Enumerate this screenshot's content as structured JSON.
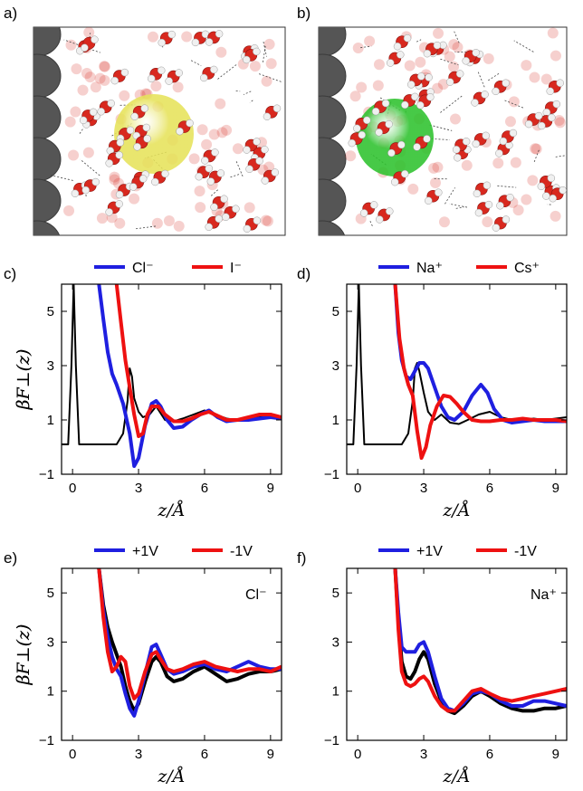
{
  "panels": {
    "a": {
      "label": "a)"
    },
    "b": {
      "label": "b)"
    }
  },
  "colors": {
    "blue": "#1f1fe0",
    "red": "#ee1111",
    "black": "#000000",
    "ion_a": "#e6e25a",
    "ion_b": "#2ec22e",
    "water_o": "#d8281e",
    "water_h": "#f0f0f0",
    "wall": "#555555"
  },
  "chart_data": [
    {
      "panel": "c)",
      "type": "line",
      "xlabel": "z/Å",
      "ylabel": "βF⊥(z)",
      "xlim": [
        -0.5,
        9.5
      ],
      "ylim": [
        -1,
        6
      ],
      "xticks": [
        0,
        3,
        6,
        9
      ],
      "yticks": [
        -1,
        1,
        3,
        5
      ],
      "legend": [
        {
          "name": "Cl⁻",
          "color": "#1f1fe0"
        },
        {
          "name": "I⁻",
          "color": "#ee1111"
        }
      ],
      "series": [
        {
          "color": "#000000",
          "width": 2,
          "x": [
            -0.5,
            -0.2,
            -0.05,
            0.05,
            0.15,
            0.3,
            0.5,
            1,
            1.5,
            2,
            2.3,
            2.5,
            2.6,
            2.7,
            2.8,
            3,
            3.2,
            3.5,
            3.8,
            4.2,
            4.6,
            5,
            5.5,
            6,
            6.5,
            7,
            7.5,
            8,
            8.5,
            9,
            9.5
          ],
          "y": [
            0.1,
            0.1,
            3,
            6,
            3,
            0.1,
            0.1,
            0.1,
            0.1,
            0.1,
            0.5,
            1.7,
            2.9,
            2.6,
            1.8,
            1.3,
            1.1,
            1.2,
            1.5,
            1.0,
            0.95,
            1.05,
            1.2,
            1.35,
            1.2,
            1.05,
            1.0,
            1.05,
            1.1,
            1.1,
            1.1
          ]
        },
        {
          "name": "Cl⁻",
          "color": "#1f1fe0",
          "width": 4,
          "x": [
            1.2,
            1.4,
            1.6,
            1.8,
            2.0,
            2.3,
            2.6,
            2.8,
            3.0,
            3.3,
            3.6,
            3.8,
            4.0,
            4.3,
            4.6,
            5.0,
            5.4,
            5.8,
            6.2,
            6.6,
            7.0,
            7.5,
            8,
            8.5,
            9,
            9.5
          ],
          "y": [
            6,
            4.7,
            3.5,
            2.7,
            2.3,
            1.6,
            0.5,
            -0.7,
            -0.4,
            0.8,
            1.6,
            1.7,
            1.5,
            1.0,
            0.7,
            0.75,
            1.0,
            1.2,
            1.35,
            1.1,
            0.95,
            1.0,
            1.0,
            1.05,
            1.1,
            1.05
          ]
        },
        {
          "name": "I⁻",
          "color": "#ee1111",
          "width": 4,
          "x": [
            2.0,
            2.2,
            2.4,
            2.6,
            2.8,
            3.0,
            3.2,
            3.4,
            3.6,
            3.9,
            4.2,
            4.6,
            5.0,
            5.4,
            5.8,
            6.2,
            6.6,
            7.0,
            7.5,
            8,
            8.5,
            9,
            9.5
          ],
          "y": [
            6,
            4.6,
            3.2,
            2.2,
            1.2,
            0.4,
            0.5,
            1.2,
            1.5,
            1.5,
            1.2,
            0.95,
            0.95,
            1.05,
            1.2,
            1.3,
            1.15,
            1.0,
            1.0,
            1.1,
            1.2,
            1.2,
            1.1
          ]
        }
      ]
    },
    {
      "panel": "d)",
      "type": "line",
      "xlabel": "z/Å",
      "ylabel": "βF⊥(z)",
      "xlim": [
        -0.5,
        9.5
      ],
      "ylim": [
        -1,
        6
      ],
      "xticks": [
        0,
        3,
        6,
        9
      ],
      "yticks": [
        -1,
        1,
        3,
        5
      ],
      "legend": [
        {
          "name": "Na⁺",
          "color": "#1f1fe0"
        },
        {
          "name": "Cs⁺",
          "color": "#ee1111"
        }
      ],
      "series": [
        {
          "color": "#000000",
          "width": 2,
          "x": [
            -0.5,
            -0.2,
            -0.05,
            0.05,
            0.15,
            0.3,
            0.5,
            1,
            1.5,
            2,
            2.3,
            2.5,
            2.6,
            2.7,
            2.8,
            3,
            3.2,
            3.5,
            3.8,
            4.2,
            4.6,
            5,
            5.5,
            6,
            6.5,
            7,
            7.5,
            8,
            8.5,
            9,
            9.5
          ],
          "y": [
            0.1,
            0.1,
            3,
            6,
            3,
            0.1,
            0.1,
            0.1,
            0.1,
            0.1,
            0.5,
            1.7,
            2.9,
            3.1,
            2.8,
            2.0,
            1.3,
            1.0,
            1.2,
            0.9,
            0.85,
            1.0,
            1.2,
            1.3,
            1.1,
            1.0,
            1.0,
            1.05,
            1.0,
            1.05,
            1.1
          ]
        },
        {
          "name": "Na⁺",
          "color": "#1f1fe0",
          "width": 4,
          "x": [
            1.7,
            1.85,
            2.0,
            2.2,
            2.4,
            2.6,
            2.8,
            3.0,
            3.2,
            3.5,
            3.8,
            4.1,
            4.4,
            4.8,
            5.2,
            5.6,
            5.9,
            6.2,
            6.6,
            7.0,
            7.5,
            8,
            8.5,
            9,
            9.5
          ],
          "y": [
            6,
            4.2,
            3.2,
            2.6,
            2.5,
            2.8,
            3.1,
            3.1,
            2.9,
            2.2,
            1.5,
            1.1,
            1.0,
            1.3,
            1.9,
            2.3,
            2.0,
            1.4,
            1.0,
            0.9,
            0.95,
            1.0,
            0.95,
            0.95,
            0.95
          ]
        },
        {
          "name": "Cs⁺",
          "color": "#ee1111",
          "width": 4,
          "x": [
            1.7,
            1.9,
            2.1,
            2.3,
            2.5,
            2.7,
            2.9,
            3.1,
            3.3,
            3.6,
            3.9,
            4.2,
            4.5,
            4.8,
            5.2,
            5.6,
            6.0,
            6.5,
            7.0,
            7.5,
            8,
            8.5,
            9,
            9.5
          ],
          "y": [
            6,
            4.0,
            2.9,
            2.3,
            1.9,
            0.6,
            -0.4,
            0.0,
            0.8,
            1.5,
            1.9,
            1.85,
            1.6,
            1.3,
            1.0,
            0.95,
            0.95,
            1.0,
            1.0,
            1.05,
            1.0,
            1.0,
            1.0,
            0.95
          ]
        }
      ]
    },
    {
      "panel": "e)",
      "type": "line",
      "xlabel": "z/Å",
      "ylabel": "βF⊥(z)",
      "xlim": [
        -0.5,
        9.5
      ],
      "ylim": [
        -1,
        6
      ],
      "xticks": [
        0,
        3,
        6,
        9
      ],
      "yticks": [
        -1,
        1,
        3,
        5
      ],
      "annotation": "Cl⁻",
      "legend": [
        {
          "name": "+1V",
          "color": "#1f1fe0"
        },
        {
          "name": "-1V",
          "color": "#ee1111"
        }
      ],
      "series": [
        {
          "color": "#000000",
          "width": 4,
          "x": [
            1.2,
            1.4,
            1.6,
            1.8,
            2.0,
            2.2,
            2.4,
            2.6,
            2.8,
            3.0,
            3.3,
            3.6,
            3.8,
            4.0,
            4.3,
            4.6,
            5.0,
            5.5,
            6.0,
            6.5,
            7.0,
            7.5,
            8,
            8.5,
            9,
            9.5
          ],
          "y": [
            6,
            4.5,
            3.6,
            3.0,
            2.5,
            2.0,
            1.2,
            0.6,
            0.2,
            0.5,
            1.4,
            2.2,
            2.4,
            2.2,
            1.6,
            1.4,
            1.5,
            1.8,
            2.0,
            1.7,
            1.4,
            1.5,
            1.7,
            1.8,
            1.8,
            1.9
          ]
        },
        {
          "name": "+1V",
          "color": "#1f1fe0",
          "width": 4,
          "x": [
            1.2,
            1.4,
            1.6,
            1.8,
            2.0,
            2.2,
            2.4,
            2.6,
            2.8,
            3.0,
            3.3,
            3.6,
            3.8,
            4.0,
            4.3,
            4.6,
            5.0,
            5.5,
            6.0,
            6.5,
            7.0,
            7.5,
            8,
            8.5,
            9,
            9.5
          ],
          "y": [
            6,
            4.3,
            3.2,
            2.4,
            1.9,
            1.6,
            0.9,
            0.3,
            0.0,
            0.6,
            1.7,
            2.8,
            2.9,
            2.5,
            1.9,
            1.7,
            1.8,
            2.0,
            2.1,
            1.9,
            1.8,
            2.0,
            2.2,
            2.0,
            1.9,
            1.9
          ]
        },
        {
          "name": "-1V",
          "color": "#ee1111",
          "width": 4,
          "x": [
            1.2,
            1.4,
            1.6,
            1.8,
            2.0,
            2.2,
            2.4,
            2.6,
            2.8,
            3.0,
            3.3,
            3.6,
            3.8,
            4.0,
            4.3,
            4.6,
            5.0,
            5.5,
            6.0,
            6.5,
            7.0,
            7.5,
            8,
            8.5,
            9,
            9.5
          ],
          "y": [
            6,
            4.0,
            2.6,
            1.8,
            2.0,
            2.4,
            2.2,
            1.2,
            0.7,
            0.9,
            1.8,
            2.5,
            2.6,
            2.3,
            1.9,
            1.8,
            1.9,
            2.1,
            2.2,
            2.0,
            1.9,
            1.8,
            1.9,
            1.9,
            1.8,
            2.0
          ]
        }
      ]
    },
    {
      "panel": "f)",
      "type": "line",
      "xlabel": "z/Å",
      "ylabel": "βF⊥(z)",
      "xlim": [
        -0.5,
        9.5
      ],
      "ylim": [
        -1,
        6
      ],
      "xticks": [
        0,
        3,
        6,
        9
      ],
      "yticks": [
        -1,
        1,
        3,
        5
      ],
      "annotation": "Na⁺",
      "legend": [
        {
          "name": "+1V",
          "color": "#1f1fe0"
        },
        {
          "name": "-1V",
          "color": "#ee1111"
        }
      ],
      "series": [
        {
          "color": "#000000",
          "width": 4,
          "x": [
            1.7,
            1.85,
            2.0,
            2.2,
            2.4,
            2.6,
            2.8,
            3.0,
            3.2,
            3.5,
            3.8,
            4.1,
            4.4,
            4.8,
            5.2,
            5.6,
            6.0,
            6.5,
            7.0,
            7.5,
            8,
            8.5,
            9,
            9.5
          ],
          "y": [
            6,
            3.8,
            2.2,
            1.6,
            1.5,
            1.8,
            2.3,
            2.6,
            2.3,
            1.3,
            0.6,
            0.2,
            0.1,
            0.4,
            0.8,
            1.0,
            0.8,
            0.5,
            0.3,
            0.2,
            0.2,
            0.3,
            0.3,
            0.4
          ]
        },
        {
          "name": "+1V",
          "color": "#1f1fe0",
          "width": 4,
          "x": [
            1.7,
            1.85,
            2.0,
            2.2,
            2.4,
            2.6,
            2.8,
            3.0,
            3.2,
            3.5,
            3.8,
            4.1,
            4.4,
            4.8,
            5.2,
            5.6,
            6.0,
            6.5,
            7.0,
            7.5,
            8,
            8.5,
            9,
            9.5
          ],
          "y": [
            6,
            4.2,
            2.8,
            2.6,
            2.6,
            2.6,
            2.9,
            3.0,
            2.6,
            1.6,
            0.7,
            0.3,
            0.2,
            0.5,
            0.9,
            1.0,
            0.9,
            0.6,
            0.4,
            0.4,
            0.6,
            0.6,
            0.5,
            0.4
          ]
        },
        {
          "name": "-1V",
          "color": "#ee1111",
          "width": 4,
          "x": [
            1.7,
            1.85,
            2.0,
            2.2,
            2.4,
            2.6,
            2.8,
            3.0,
            3.2,
            3.5,
            3.8,
            4.1,
            4.4,
            4.8,
            5.2,
            5.6,
            6.0,
            6.5,
            7.0,
            7.5,
            8,
            8.5,
            9,
            9.5
          ],
          "y": [
            6,
            3.5,
            1.8,
            1.3,
            1.2,
            1.3,
            1.5,
            1.6,
            1.4,
            0.8,
            0.4,
            0.2,
            0.2,
            0.6,
            1.0,
            1.1,
            0.9,
            0.7,
            0.6,
            0.7,
            0.8,
            0.9,
            1.0,
            1.1
          ]
        }
      ]
    }
  ]
}
